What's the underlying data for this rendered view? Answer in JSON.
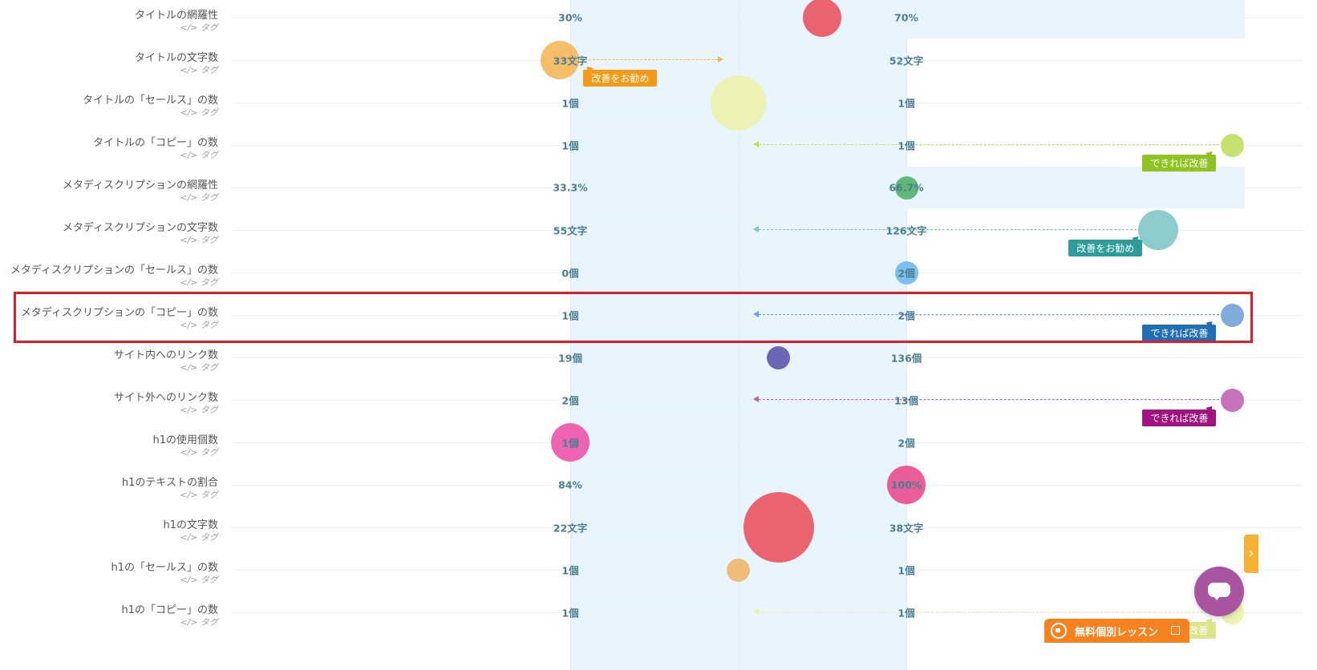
{
  "chart_data": {
    "type": "table",
    "column_ticks": [
      "0%",
      "50%",
      "100%"
    ],
    "rows": [
      {
        "metric": "タイトルの網羅性",
        "tag": "</> タグ",
        "low": "30%",
        "high": "70%",
        "current": 0.75,
        "bubble_scale": 0.55,
        "color": "#e8505b",
        "band_ext": true,
        "arrow_to": null,
        "badge": null,
        "highlighted": false
      },
      {
        "metric": "タイトルの文字数",
        "tag": "</> タグ",
        "low": "33文字",
        "high": "52文字",
        "current": -0.03,
        "bubble_scale": 0.55,
        "color": "#f5b553",
        "band_ext": false,
        "arrow_to": 0.45,
        "badge": "改善をお勧め",
        "highlighted": false
      },
      {
        "metric": "タイトルの「セールス」の数",
        "tag": "</> タグ",
        "low": "1個",
        "high": "1個",
        "current": 0.5,
        "bubble_scale": 0.78,
        "color": "#eaf1a8",
        "band_ext": false,
        "arrow_to": null,
        "badge": null,
        "highlighted": false
      },
      {
        "metric": "タイトルの「コピー」の数",
        "tag": "</> タグ",
        "low": "1個",
        "high": "1個",
        "current": 1.97,
        "bubble_scale": 0.33,
        "color": "#bedd5a",
        "band_ext": false,
        "arrow_to": 0.55,
        "badge": "できれば改善",
        "highlighted": false
      },
      {
        "metric": "メタディスクリプションの網羅性",
        "tag": "</> タグ",
        "low": "33.3%",
        "high": "66.7%",
        "current": 1.0,
        "bubble_scale": 0.33,
        "color": "#4caf63",
        "band_ext": true,
        "arrow_to": null,
        "badge": null,
        "highlighted": false
      },
      {
        "metric": "メタディスクリプションの文字数",
        "tag": "</> タグ",
        "low": "55文字",
        "high": "126文字",
        "current": 1.75,
        "bubble_scale": 0.57,
        "color": "#7ec4c6",
        "band_ext": false,
        "arrow_to": 0.55,
        "badge": "改善をお勧め",
        "highlighted": false
      },
      {
        "metric": "メタディスクリプションの「セールス」の数",
        "tag": "</> タグ",
        "low": "0個",
        "high": "2個",
        "current": 1.0,
        "bubble_scale": 0.33,
        "color": "#6bb7ea",
        "band_ext": false,
        "arrow_to": null,
        "badge": null,
        "highlighted": false
      },
      {
        "metric": "メタディスクリプションの「コピー」の数",
        "tag": "</> タグ",
        "low": "1個",
        "high": "2個",
        "current": 1.97,
        "bubble_scale": 0.33,
        "color": "#6f9fd5",
        "band_ext": false,
        "arrow_to": 0.55,
        "badge": "できれば改善",
        "highlighted": true
      },
      {
        "metric": "サイト内へのリンク数",
        "tag": "</> タグ",
        "low": "19個",
        "high": "136個",
        "current": 0.62,
        "bubble_scale": 0.33,
        "color": "#5a53a8",
        "band_ext": false,
        "arrow_to": null,
        "badge": null,
        "highlighted": false
      },
      {
        "metric": "サイト外へのリンク数",
        "tag": "</> タグ",
        "low": "2個",
        "high": "13個",
        "current": 1.97,
        "bubble_scale": 0.33,
        "color": "#c05eb5",
        "band_ext": false,
        "arrow_to": 0.55,
        "badge": "できれば改善",
        "highlighted": false
      },
      {
        "metric": "h1の使用個数",
        "tag": "</> タグ",
        "low": "1個",
        "high": "2個",
        "current": 0.0,
        "bubble_scale": 0.55,
        "color": "#ee4da8",
        "band_ext": false,
        "arrow_to": null,
        "badge": null,
        "highlighted": false
      },
      {
        "metric": "h1のテキストの割合",
        "tag": "</> タグ",
        "low": "84%",
        "high": "100%",
        "current": 1.0,
        "bubble_scale": 0.55,
        "color": "#e8488a",
        "band_ext": false,
        "arrow_to": null,
        "badge": null,
        "highlighted": false
      },
      {
        "metric": "h1の文字数",
        "tag": "</> タグ",
        "low": "22文字",
        "high": "38文字",
        "current": 0.62,
        "bubble_scale": 1.0,
        "color": "#e8505b",
        "band_ext": false,
        "arrow_to": null,
        "badge": null,
        "highlighted": false
      },
      {
        "metric": "h1の「セールス」の数",
        "tag": "</> タグ",
        "low": "1個",
        "high": "1個",
        "current": 0.5,
        "bubble_scale": 0.33,
        "color": "#f0b566",
        "band_ext": false,
        "arrow_to": null,
        "badge": null,
        "highlighted": false
      },
      {
        "metric": "h1の「コピー」の数",
        "tag": "</> タグ",
        "low": "1個",
        "high": "1個",
        "current": 1.97,
        "bubble_scale": 0.33,
        "color": "#eaf0a6",
        "band_ext": false,
        "arrow_to": 0.55,
        "badge": "できれば改善",
        "highlighted": false
      }
    ]
  },
  "badge_colors": {
    "改善をお勧め": [
      "#f39a16",
      "#2f9c9c"
    ],
    "できれば改善": [
      "#8fc31f",
      "#1e6fb5",
      "#a2137f",
      "#dbe58a"
    ]
  },
  "widgets": {
    "side_tab_icon": "chevron-right-icon",
    "chat_icon": "chat-bubble-icon",
    "lesson_button_label": "無料個別レッスン",
    "lesson_camera_icon": "video-camera-icon",
    "lesson_external_icon": "external-link-icon"
  }
}
